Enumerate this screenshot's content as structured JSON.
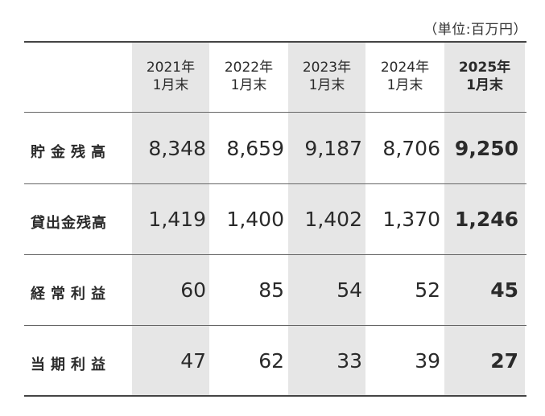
{
  "unit_note": "（単位:百万円）",
  "columns": [
    {
      "year": "2021年",
      "month": "1月末"
    },
    {
      "year": "2022年",
      "month": "1月末"
    },
    {
      "year": "2023年",
      "month": "1月末"
    },
    {
      "year": "2024年",
      "month": "1月末"
    },
    {
      "year": "2025年",
      "month": "1月末"
    }
  ],
  "rows": [
    {
      "label": "貯金残高",
      "values": [
        "8,348",
        "8,659",
        "9,187",
        "8,706",
        "9,250"
      ]
    },
    {
      "label": "貸出金残高",
      "values": [
        "1,419",
        "1,400",
        "1,402",
        "1,370",
        "1,246"
      ]
    },
    {
      "label": "経常利益",
      "values": [
        "60",
        "85",
        "54",
        "52",
        "45"
      ]
    },
    {
      "label": "当期利益",
      "values": [
        "47",
        "62",
        "33",
        "39",
        "27"
      ]
    }
  ],
  "colors": {
    "shade": "#e6e6e6",
    "rule": "#444444",
    "text": "#2a2a2a"
  }
}
